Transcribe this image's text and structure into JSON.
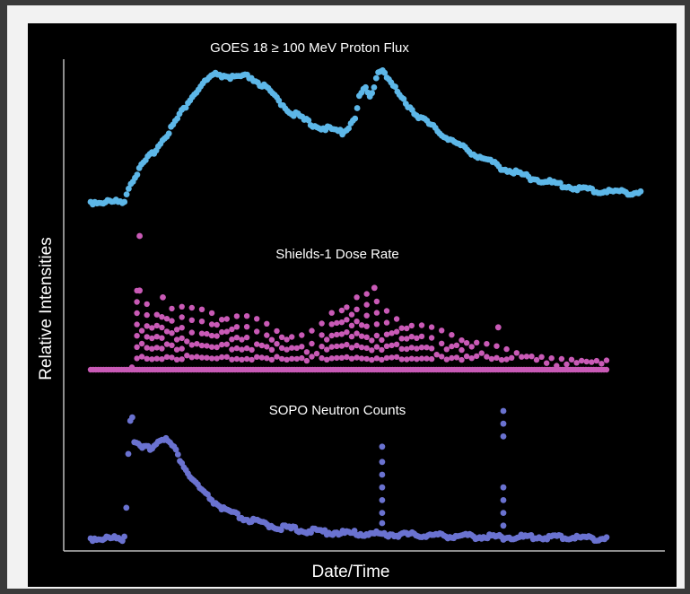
{
  "chart_data": {
    "type": "scatter",
    "xlabel": "Date/Time",
    "ylabel": "Relative Intensities",
    "grid": false,
    "x_range": [
      0,
      100
    ],
    "y_range": [
      0,
      1
    ],
    "series": [
      {
        "name": "GOES 18 ≥ 100 MeV Proton Flux",
        "color": "#5db7e8",
        "style": "dense-points",
        "points": [
          [
            0,
            0.0
          ],
          [
            6,
            0.0
          ],
          [
            7,
            0.12
          ],
          [
            9,
            0.25
          ],
          [
            12,
            0.4
          ],
          [
            15,
            0.57
          ],
          [
            18,
            0.76
          ],
          [
            21,
            0.9
          ],
          [
            23,
            0.95
          ],
          [
            26,
            0.92
          ],
          [
            29,
            0.93
          ],
          [
            32,
            0.84
          ],
          [
            36,
            0.68
          ],
          [
            40,
            0.58
          ],
          [
            44,
            0.53
          ],
          [
            46,
            0.52
          ],
          [
            48,
            0.62
          ],
          [
            49,
            0.8
          ],
          [
            50,
            0.84
          ],
          [
            51,
            0.76
          ],
          [
            52,
            0.95
          ],
          [
            53,
            1.0
          ],
          [
            54,
            0.92
          ],
          [
            56,
            0.8
          ],
          [
            59,
            0.66
          ],
          [
            63,
            0.53
          ],
          [
            67,
            0.42
          ],
          [
            71,
            0.33
          ],
          [
            75,
            0.25
          ],
          [
            80,
            0.18
          ],
          [
            86,
            0.12
          ],
          [
            92,
            0.08
          ],
          [
            100,
            0.07
          ]
        ]
      },
      {
        "name": "Shields-1 Dose Rate",
        "color": "#c95ab6",
        "style": "baseline-spikes",
        "baseline": 0.02,
        "envelope": [
          [
            0,
            0.04
          ],
          [
            8,
            0.05
          ],
          [
            9,
            0.6
          ],
          [
            12,
            0.45
          ],
          [
            15,
            0.5
          ],
          [
            20,
            0.45
          ],
          [
            25,
            0.45
          ],
          [
            30,
            0.4
          ],
          [
            35,
            0.34
          ],
          [
            40,
            0.25
          ],
          [
            44,
            0.3
          ],
          [
            47,
            0.46
          ],
          [
            50,
            0.56
          ],
          [
            53,
            0.58
          ],
          [
            57,
            0.45
          ],
          [
            62,
            0.37
          ],
          [
            67,
            0.3
          ],
          [
            72,
            0.25
          ],
          [
            77,
            0.19
          ],
          [
            83,
            0.13
          ],
          [
            90,
            0.08
          ],
          [
            100,
            0.07
          ]
        ],
        "spikes": [
          [
            9.5,
            1.0
          ],
          [
            9.5,
            0.6
          ],
          [
            14,
            0.55
          ],
          [
            55,
            0.62
          ],
          [
            79,
            0.33
          ]
        ]
      },
      {
        "name": "SOPO Neutron Counts",
        "color": "#6a72d0",
        "style": "dense-points",
        "points": [
          [
            0,
            0.0
          ],
          [
            6.5,
            0.0
          ],
          [
            7,
            0.3
          ],
          [
            7.5,
            0.9
          ],
          [
            8,
            1.0
          ],
          [
            8.5,
            0.75
          ],
          [
            10,
            0.7
          ],
          [
            12,
            0.72
          ],
          [
            14,
            0.8
          ],
          [
            16,
            0.72
          ],
          [
            19,
            0.5
          ],
          [
            22,
            0.35
          ],
          [
            26,
            0.22
          ],
          [
            30,
            0.15
          ],
          [
            36,
            0.09
          ],
          [
            42,
            0.06
          ],
          [
            50,
            0.04
          ],
          [
            60,
            0.03
          ],
          [
            70,
            0.02
          ],
          [
            80,
            0.01
          ],
          [
            90,
            0.01
          ],
          [
            100,
            0.0
          ]
        ],
        "spikes": [
          [
            56.5,
            0.72
          ],
          [
            56.5,
            0.6
          ],
          [
            56.5,
            0.5
          ],
          [
            56.5,
            0.4
          ],
          [
            56.5,
            0.3
          ],
          [
            56.5,
            0.2
          ],
          [
            56.5,
            0.12
          ],
          [
            80,
            1.0
          ],
          [
            80,
            0.9
          ],
          [
            80,
            0.8
          ],
          [
            80,
            0.4
          ],
          [
            80,
            0.3
          ],
          [
            80,
            0.2
          ],
          [
            80,
            0.1
          ]
        ]
      }
    ]
  }
}
